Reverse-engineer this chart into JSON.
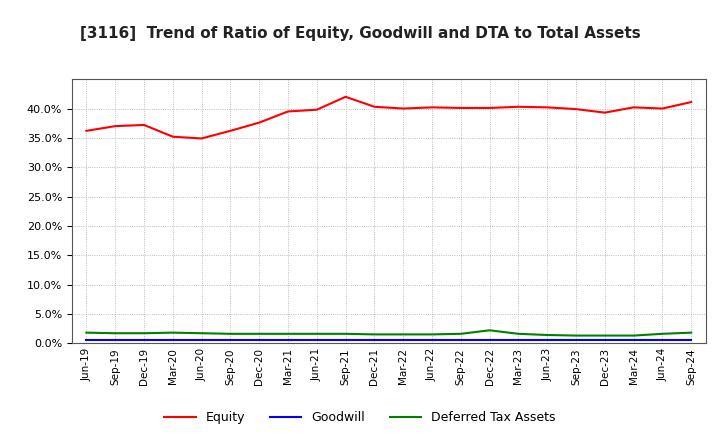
{
  "title": "[3116]  Trend of Ratio of Equity, Goodwill and DTA to Total Assets",
  "x_labels": [
    "Jun-19",
    "Sep-19",
    "Dec-19",
    "Mar-20",
    "Jun-20",
    "Sep-20",
    "Dec-20",
    "Mar-21",
    "Jun-21",
    "Sep-21",
    "Dec-21",
    "Mar-22",
    "Jun-22",
    "Sep-22",
    "Dec-22",
    "Mar-23",
    "Jun-23",
    "Sep-23",
    "Dec-23",
    "Mar-24",
    "Jun-24",
    "Sep-24"
  ],
  "equity": [
    0.362,
    0.37,
    0.372,
    0.352,
    0.349,
    0.362,
    0.376,
    0.395,
    0.398,
    0.42,
    0.403,
    0.4,
    0.402,
    0.401,
    0.401,
    0.403,
    0.402,
    0.399,
    0.393,
    0.402,
    0.4,
    0.411
  ],
  "goodwill": [
    0.005,
    0.005,
    0.005,
    0.005,
    0.005,
    0.005,
    0.005,
    0.005,
    0.005,
    0.005,
    0.005,
    0.005,
    0.005,
    0.005,
    0.005,
    0.005,
    0.005,
    0.005,
    0.005,
    0.005,
    0.005,
    0.005
  ],
  "dta": [
    0.018,
    0.017,
    0.017,
    0.018,
    0.017,
    0.016,
    0.016,
    0.016,
    0.016,
    0.016,
    0.015,
    0.015,
    0.015,
    0.016,
    0.022,
    0.016,
    0.014,
    0.013,
    0.013,
    0.013,
    0.016,
    0.018
  ],
  "equity_color": "#ff0000",
  "goodwill_color": "#0000ff",
  "dta_color": "#008000",
  "background_color": "#ffffff",
  "grid_color": "#aaaaaa",
  "ylim": [
    0.0,
    0.45
  ],
  "yticks": [
    0.0,
    0.05,
    0.1,
    0.15,
    0.2,
    0.25,
    0.3,
    0.35,
    0.4
  ],
  "title_fontsize": 11,
  "legend_labels": [
    "Equity",
    "Goodwill",
    "Deferred Tax Assets"
  ],
  "line_width": 1.5
}
